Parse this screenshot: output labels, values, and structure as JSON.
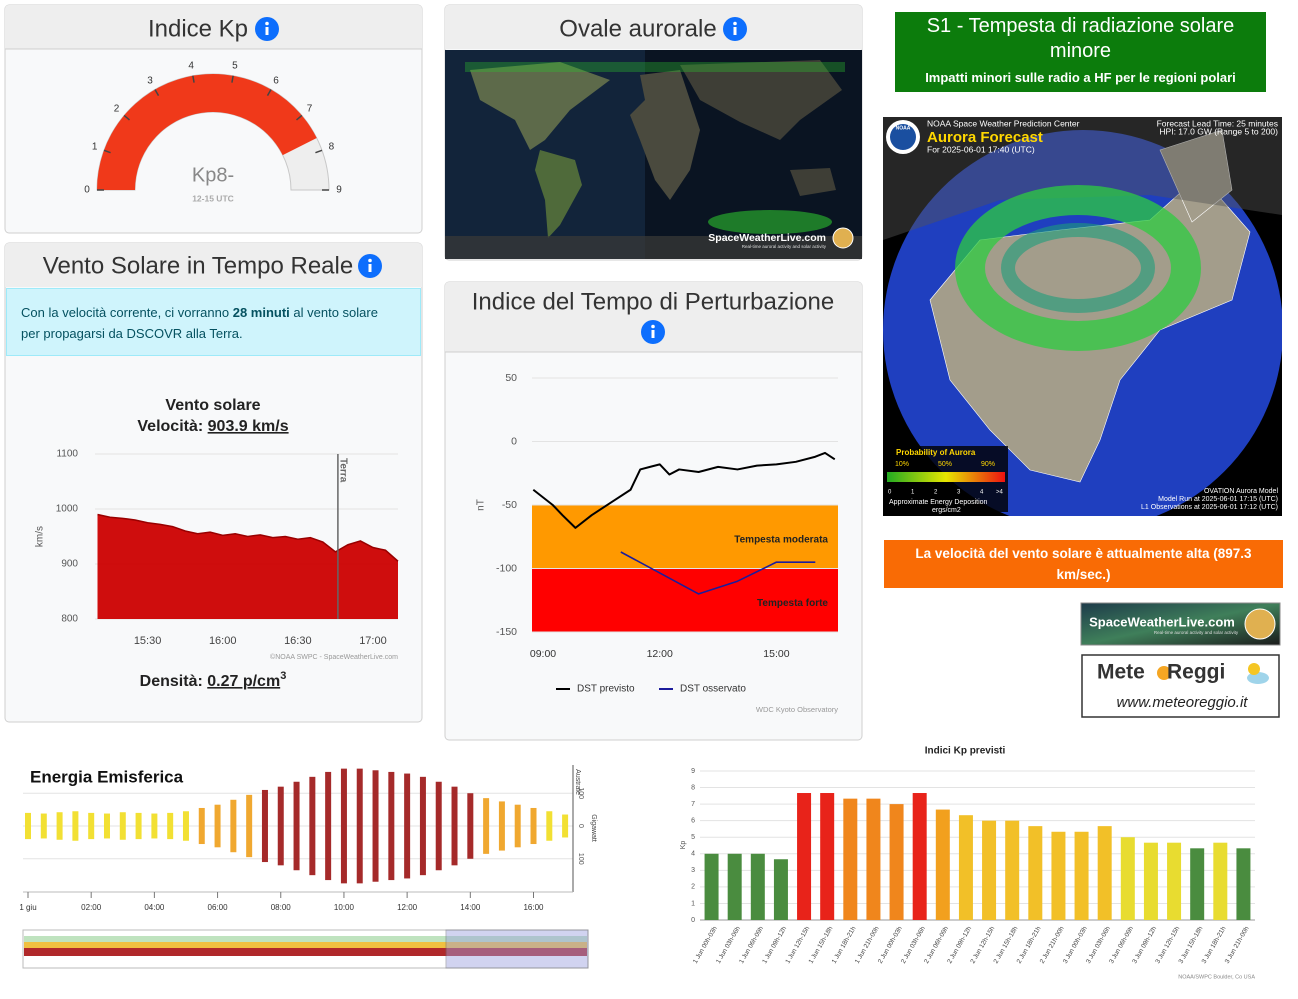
{
  "kp_panel": {
    "title": "Indice Kp"
  },
  "solar_wind_panel": {
    "title": "Vento Solare in Tempo Reale",
    "notice": {
      "before": "Con la velocità corrente, ci vorranno ",
      "highlight": "28 minuti",
      "after": " al vento solare",
      "line2": "per propagarsi da DSCOVR alla Terra."
    },
    "density": {
      "label": "Densità: ",
      "value": "0.27 p/cm",
      "exponent": "3"
    }
  },
  "oval_panel": {
    "title": "Ovale aurorale",
    "watermark": "SpaceWeatherLive.com",
    "watermark_sub": "Real-time auroral activity and solar activity"
  },
  "dst_panel": {
    "title": "Indice del Tempo di Perturbazione"
  },
  "alerts": {
    "s1": {
      "title": "S1 - Tempesta di radiazione solare minore",
      "text": "Impatti minori sulle radio a HF per le regioni polari"
    },
    "wind": "La velocità del vento solare è attualmente alta (897.3 km/sec.)"
  },
  "aurora_forecast": {
    "logo": "NOAA",
    "center": "NOAA Space Weather Prediction Center",
    "title": "Aurora Forecast",
    "time": "For 2025-06-01 17:40 (UTC)",
    "lead": "Forecast Lead Time: 25 minutes",
    "hpi": "HPI: 17.0 GW (Range 5 to 200)",
    "legend_title": "Probability of Aurora",
    "legend_ticks": [
      "10%",
      "50%",
      "90%"
    ],
    "energy_ticks": [
      "0",
      "1",
      "2",
      "3",
      "4",
      ">4"
    ],
    "energy_label": "Approximate Energy Deposition",
    "energy_unit": "ergs/cm2",
    "model": "OVATION Aurora Model",
    "model_run": "Model Run at 2025-06-01 17:15 (UTC)",
    "l1": "L1 Observations at 2025-06-01 17:12 (UTC)"
  },
  "logos": {
    "swl": "SpaceWeatherLive.com",
    "swl_sub": "Real-time auroral activity and solar activity",
    "meteo_a": "Mete",
    "meteo_b": " Reggi",
    "meteo_url": "www.meteoreggio.it"
  },
  "chart_data": [
    {
      "type": "gauge",
      "range": [
        0,
        9
      ],
      "ticks": [
        0,
        1,
        2,
        3,
        4,
        5,
        6,
        7,
        8,
        9
      ],
      "value": 7.67,
      "value_label": "Kp8-",
      "period": "12-15 UTC",
      "color": "#f0391a",
      "track_color": "#eeeeee"
    },
    {
      "type": "area",
      "title": "Vento solare",
      "speed_label": "Velocità: ",
      "speed_value": "903.9 km/s",
      "ylabel": "km/s",
      "x": [
        "15:10",
        "15:15",
        "15:20",
        "15:25",
        "15:30",
        "15:35",
        "15:40",
        "15:45",
        "15:50",
        "15:55",
        "16:00",
        "16:05",
        "16:10",
        "16:15",
        "16:20",
        "16:25",
        "16:30",
        "16:35",
        "16:40",
        "16:45",
        "16:50",
        "16:55",
        "17:00",
        "17:05",
        "17:10"
      ],
      "values": [
        990,
        985,
        983,
        980,
        975,
        972,
        968,
        960,
        955,
        958,
        952,
        955,
        950,
        953,
        948,
        950,
        945,
        948,
        940,
        922,
        935,
        942,
        930,
        925,
        905
      ],
      "color": "#cc0000",
      "xlim": [
        "15:09",
        "17:10"
      ],
      "xticks": [
        "15:30",
        "16:00",
        "16:30",
        "17:00"
      ],
      "ylim": [
        800,
        1100
      ],
      "yticks": [
        800,
        900,
        1000,
        1100
      ],
      "grid": true,
      "marker": {
        "x": "16:46",
        "label": "Terra"
      },
      "credit": "©NOAA SWPC - SpaceWeatherLive.com"
    },
    {
      "type": "line",
      "ylabel": "nT",
      "ylim": [
        -150,
        50
      ],
      "yticks": [
        -150,
        -100,
        -50,
        0,
        50
      ],
      "grid": true,
      "xlim": [
        "08:43",
        "16:35"
      ],
      "xticks": [
        "09:00",
        "12:00",
        "15:00"
      ],
      "bands": [
        {
          "from": -100,
          "to": -50,
          "color": "#ff9900",
          "label": "Tempesta moderata"
        },
        {
          "from": -150,
          "to": -100,
          "color": "#ff0000",
          "label": "Tempesta forte"
        }
      ],
      "series": [
        {
          "name": "DST previsto",
          "color": "#000000",
          "x": [
            "08:45",
            "09:15",
            "09:30",
            "09:50",
            "10:15",
            "10:45",
            "11:15",
            "11:30",
            "11:45",
            "12:00",
            "12:15",
            "12:30",
            "13:00",
            "13:30",
            "14:00",
            "14:30",
            "15:00",
            "15:30",
            "16:00",
            "16:15",
            "16:30"
          ],
          "values": [
            -38,
            -50,
            -58,
            -68,
            -58,
            -48,
            -38,
            -22,
            -20,
            -18,
            -26,
            -22,
            -24,
            -20,
            -22,
            -19,
            -18,
            -16,
            -12,
            -9,
            -14
          ]
        },
        {
          "name": "DST osservato",
          "color": "#1c1c9c",
          "x": [
            "11:00",
            "13:00",
            "14:00",
            "15:00",
            "16:00"
          ],
          "values": [
            -87,
            -120,
            -110,
            -95,
            -95
          ]
        }
      ],
      "credit": "WDC Kyoto Observatory"
    },
    {
      "type": "mirror_bar",
      "title": "Energia Emisferica",
      "ylabel": "Gigawatt",
      "hemisphere_label": "Australe",
      "x": [
        "00:00",
        "00:30",
        "01:00",
        "01:30",
        "02:00",
        "02:30",
        "03:00",
        "03:30",
        "04:00",
        "04:30",
        "05:00",
        "05:30",
        "06:00",
        "06:30",
        "07:00",
        "07:30",
        "08:00",
        "08:30",
        "09:00",
        "09:30",
        "10:00",
        "10:30",
        "11:00",
        "11:30",
        "12:00",
        "12:30",
        "13:00",
        "13:30",
        "14:00",
        "14:30",
        "15:00",
        "15:30",
        "16:00",
        "16:30",
        "17:00"
      ],
      "values": [
        40,
        38,
        42,
        45,
        40,
        38,
        42,
        40,
        38,
        40,
        45,
        55,
        65,
        80,
        95,
        110,
        120,
        135,
        150,
        165,
        175,
        175,
        170,
        165,
        160,
        150,
        135,
        120,
        100,
        85,
        75,
        65,
        55,
        45,
        35
      ],
      "colors": [
        "#f2e033",
        "#f2e033",
        "#f2e033",
        "#f2e033",
        "#f2e033",
        "#f2e033",
        "#f2e033",
        "#f2e033",
        "#f2e033",
        "#f2e033",
        "#f2e033",
        "#f0a830",
        "#f0a830",
        "#f0a830",
        "#f0a830",
        "#a52a2a",
        "#a52a2a",
        "#a52a2a",
        "#a52a2a",
        "#a52a2a",
        "#a52a2a",
        "#a52a2a",
        "#a52a2a",
        "#a52a2a",
        "#a52a2a",
        "#a52a2a",
        "#a52a2a",
        "#a52a2a",
        "#a52a2a",
        "#f0a830",
        "#f0a830",
        "#f0a830",
        "#f0a830",
        "#f2e033",
        "#f2e033"
      ],
      "xlim": [
        "00:00",
        "17:15"
      ],
      "xticks": [
        {
          "value": "00:00",
          "label": "1 giu"
        },
        "02:00",
        "04:00",
        "06:00",
        "08:00",
        "10:00",
        "12:00",
        "14:00",
        "16:00"
      ],
      "ylim": [
        -180,
        180
      ],
      "yticks": [
        {
          "value": -100,
          "label": "100"
        },
        0,
        100
      ],
      "grid": true
    },
    {
      "type": "bar",
      "title": "Indici Kp previsti",
      "ylabel": "Kp",
      "categories": [
        "1 Jun 00h-03h",
        "1 Jun 03h-06h",
        "1 Jun 06h-09h",
        "1 Jun 09h-12h",
        "1 Jun 12h-15h",
        "1 Jun 15h-18h",
        "1 Jun 18h-21h",
        "1 Jun 21h-00h",
        "2 Jun 00h-03h",
        "2 Jun 03h-06h",
        "2 Jun 06h-09h",
        "2 Jun 09h-12h",
        "2 Jun 12h-15h",
        "2 Jun 15h-18h",
        "2 Jun 18h-21h",
        "2 Jun 21h-00h",
        "3 Jun 00h-03h",
        "3 Jun 03h-06h",
        "3 Jun 06h-09h",
        "3 Jun 09h-12h",
        "3 Jun 12h-15h",
        "3 Jun 15h-18h",
        "3 Jun 18h-21h",
        "3 Jun 21h-00h"
      ],
      "values": [
        4,
        4,
        4,
        3.67,
        7.67,
        7.67,
        7.33,
        7.33,
        7,
        7.67,
        6.67,
        6.33,
        6,
        6,
        5.67,
        5.33,
        5.33,
        5.67,
        5,
        4.67,
        4.67,
        4.33,
        4.67,
        4.33
      ],
      "colors": [
        "#4a8c3f",
        "#4a8c3f",
        "#4a8c3f",
        "#4a8c3f",
        "#e8231a",
        "#e8231a",
        "#f0861c",
        "#f0861c",
        "#f0861c",
        "#e8231a",
        "#f2a01e",
        "#f2c028",
        "#f2c028",
        "#f2c028",
        "#f2c028",
        "#f2c028",
        "#f2c028",
        "#f2c028",
        "#e8dc30",
        "#e8dc30",
        "#e8dc30",
        "#4a8c3f",
        "#e8dc30",
        "#4a8c3f"
      ],
      "ylim": [
        0,
        9
      ],
      "yticks": [
        0,
        1,
        2,
        3,
        4,
        5,
        6,
        7,
        8,
        9
      ],
      "grid": true,
      "credit": "NOAA/SWPC Boulder, Co USA"
    }
  ]
}
